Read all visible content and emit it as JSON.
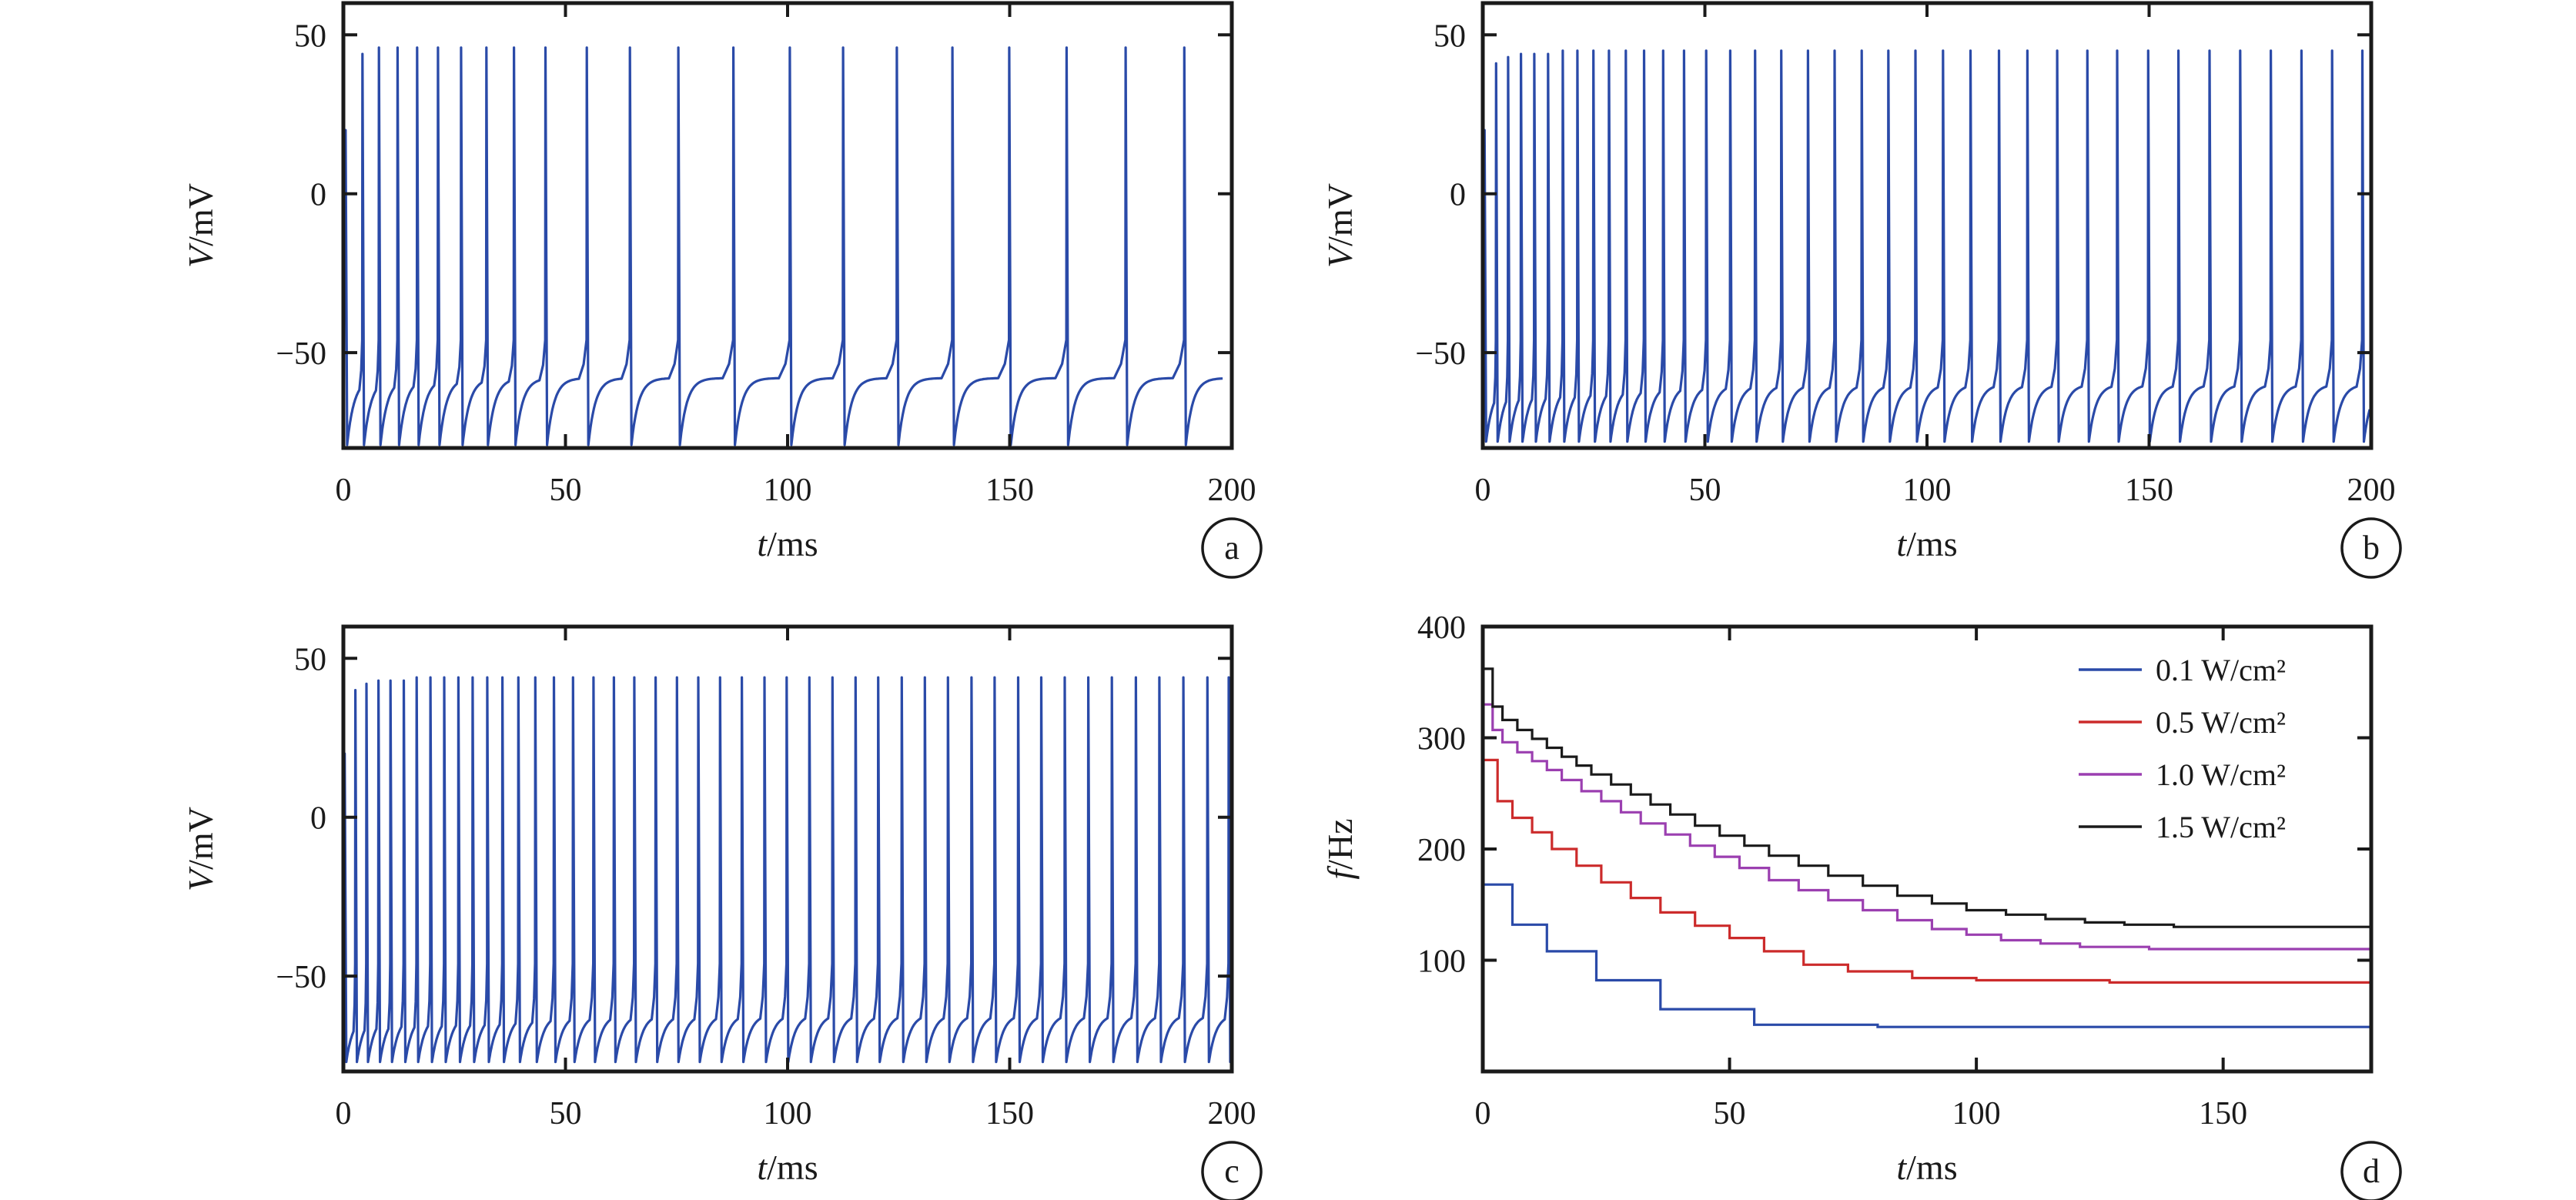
{
  "chart_data": [
    {
      "panel": "a",
      "type": "line",
      "xlabel_var": "t",
      "xlabel_unit": "/ms",
      "ylabel_var": "V",
      "ylabel_unit": "/mV",
      "xlim": [
        0,
        200
      ],
      "ylim": [
        -80,
        60
      ],
      "xticks": [
        "0",
        "50",
        "100",
        "150",
        "200"
      ],
      "yticks": [
        "50",
        "0",
        "−50"
      ],
      "ytick_values": [
        50,
        0,
        -50
      ],
      "xtick_values": [
        0,
        50,
        100,
        150,
        200
      ],
      "grid": false,
      "color": "#2a4aa8",
      "rest_potential": -79,
      "settle_potential": -58,
      "spikes": [
        0.5,
        4.3,
        8.0,
        12.2,
        16.6,
        21.3,
        26.5,
        32.2,
        38.4,
        45.5,
        54.8,
        64.5,
        75.4,
        87.8,
        100.5,
        112.5,
        124.6,
        137.1,
        149.9,
        162.8,
        176.1,
        189.3
      ],
      "peaks": [
        20,
        44,
        46,
        46,
        46,
        46,
        46,
        46,
        46,
        46,
        46,
        46,
        46,
        46,
        46,
        46,
        46,
        46,
        46,
        46,
        46,
        46
      ]
    },
    {
      "panel": "b",
      "type": "line",
      "xlabel_var": "t",
      "xlabel_unit": "/ms",
      "ylabel_var": "V",
      "ylabel_unit": "/mV",
      "xlim": [
        0,
        200
      ],
      "ylim": [
        -80,
        60
      ],
      "xticks": [
        "0",
        "50",
        "100",
        "150",
        "200"
      ],
      "yticks": [
        "50",
        "0",
        "−50"
      ],
      "ytick_values": [
        50,
        0,
        -50
      ],
      "xtick_values": [
        0,
        50,
        100,
        150,
        200
      ],
      "grid": false,
      "color": "#2a4aa8",
      "rest_potential": -78,
      "settle_potential": -60,
      "spikes": [
        0.4,
        3.0,
        5.7,
        8.6,
        11.6,
        14.7,
        18.0,
        21.3,
        24.9,
        28.4,
        32.2,
        36.3,
        40.6,
        45.3,
        50.3,
        55.7,
        61.3,
        67.2,
        73.2,
        79.2,
        85.3,
        91.3,
        97.4,
        103.6,
        109.8,
        116.2,
        122.6,
        129.3,
        136.1,
        142.8,
        149.8,
        156.6,
        163.6,
        170.5,
        177.4,
        184.3,
        191.2,
        198.0
      ],
      "peaks": [
        20,
        41,
        43,
        44,
        44,
        44,
        45,
        45,
        45,
        45,
        45,
        45,
        45,
        45,
        45,
        45,
        45,
        45,
        45,
        45,
        45,
        45,
        45,
        45,
        45,
        45,
        45,
        45,
        45,
        45,
        45,
        45,
        45,
        45,
        45,
        45,
        45,
        45
      ]
    },
    {
      "panel": "c",
      "type": "line",
      "xlabel_var": "t",
      "xlabel_unit": "/ms",
      "ylabel_var": "V",
      "ylabel_unit": "/mV",
      "xlim": [
        0,
        200
      ],
      "ylim": [
        -80,
        60
      ],
      "xticks": [
        "0",
        "50",
        "100",
        "150",
        "200"
      ],
      "yticks": [
        "50",
        "0",
        "−50"
      ],
      "ytick_values": [
        50,
        0,
        -50
      ],
      "xtick_values": [
        0,
        50,
        100,
        150,
        200
      ],
      "grid": false,
      "color": "#2a4aa8",
      "rest_potential": -77,
      "settle_potential": -62,
      "spikes": [
        0.3,
        2.7,
        5.2,
        7.9,
        10.6,
        13.6,
        16.5,
        19.6,
        22.7,
        25.9,
        29.1,
        32.4,
        35.8,
        39.4,
        43.2,
        47.4,
        51.7,
        56.3,
        60.9,
        65.5,
        70.3,
        75.1,
        79.9,
        84.8,
        89.7,
        94.8,
        99.8,
        104.9,
        110.1,
        115.3,
        120.4,
        125.7,
        130.9,
        136.1,
        141.4,
        146.6,
        151.9,
        157.1,
        162.4,
        167.7,
        173.0,
        178.4,
        183.7,
        189.1,
        194.5,
        199.3
      ],
      "peaks": [
        20,
        40,
        42,
        43,
        43,
        43,
        44,
        44,
        44,
        44,
        44,
        44,
        44,
        44,
        44,
        44,
        44,
        44,
        44,
        44,
        44,
        44,
        44,
        44,
        44,
        44,
        44,
        44,
        44,
        44,
        44,
        44,
        44,
        44,
        44,
        44,
        44,
        44,
        44,
        44,
        44,
        44,
        44,
        44,
        44,
        44
      ]
    },
    {
      "panel": "d",
      "type": "line",
      "step": true,
      "xlabel_var": "t",
      "xlabel_unit": "/ms",
      "ylabel_var": "f",
      "ylabel_unit": "/Hz",
      "xlim": [
        0,
        180
      ],
      "ylim": [
        0,
        400
      ],
      "xticks": [
        "0",
        "50",
        "100",
        "150"
      ],
      "xtick_values": [
        0,
        50,
        100,
        150
      ],
      "yticks": [
        "400",
        "300",
        "200",
        "100"
      ],
      "ytick_values": [
        400,
        300,
        200,
        100
      ],
      "grid": false,
      "legend": "top-right",
      "series": [
        {
          "name": "0.1 W/cm²",
          "color": "#2a4aa8",
          "x": [
            0,
            6,
            13,
            23,
            36,
            55,
            80,
            180
          ],
          "y": [
            168,
            132,
            108,
            82,
            56,
            42,
            40,
            40
          ]
        },
        {
          "name": "0.5 W/cm²",
          "color": "#cc2b2b",
          "x": [
            0,
            3,
            6,
            10,
            14,
            19,
            24,
            30,
            36,
            43,
            50,
            57,
            65,
            74,
            87,
            100,
            127,
            180
          ],
          "y": [
            280,
            243,
            228,
            215,
            200,
            185,
            170,
            156,
            143,
            131,
            120,
            108,
            96,
            90,
            84,
            82,
            80,
            80
          ]
        },
        {
          "name": "1.0 W/cm²",
          "color": "#9b3fb0",
          "x": [
            0,
            2,
            4,
            7,
            10,
            13,
            16,
            20,
            24,
            28,
            32,
            37,
            42,
            47,
            52,
            58,
            64,
            70,
            77,
            84,
            91,
            98,
            105,
            113,
            121,
            135,
            180
          ],
          "y": [
            330,
            307,
            296,
            287,
            279,
            271,
            262,
            252,
            243,
            233,
            223,
            213,
            203,
            193,
            183,
            172,
            163,
            154,
            145,
            136,
            128,
            123,
            118,
            115,
            112,
            110,
            110
          ]
        },
        {
          "name": "1.5 W/cm²",
          "color": "#1a1a1a",
          "x": [
            0,
            2,
            4,
            7,
            10,
            13,
            16,
            19,
            22,
            26,
            30,
            34,
            38,
            43,
            48,
            53,
            58,
            64,
            70,
            77,
            84,
            91,
            98,
            106,
            114,
            122,
            130,
            140,
            150,
            180
          ],
          "y": [
            362,
            328,
            316,
            307,
            299,
            291,
            283,
            275,
            267,
            258,
            249,
            240,
            231,
            221,
            212,
            203,
            194,
            185,
            176,
            167,
            158,
            151,
            145,
            141,
            137,
            134,
            132,
            130,
            130,
            130
          ]
        }
      ]
    }
  ]
}
